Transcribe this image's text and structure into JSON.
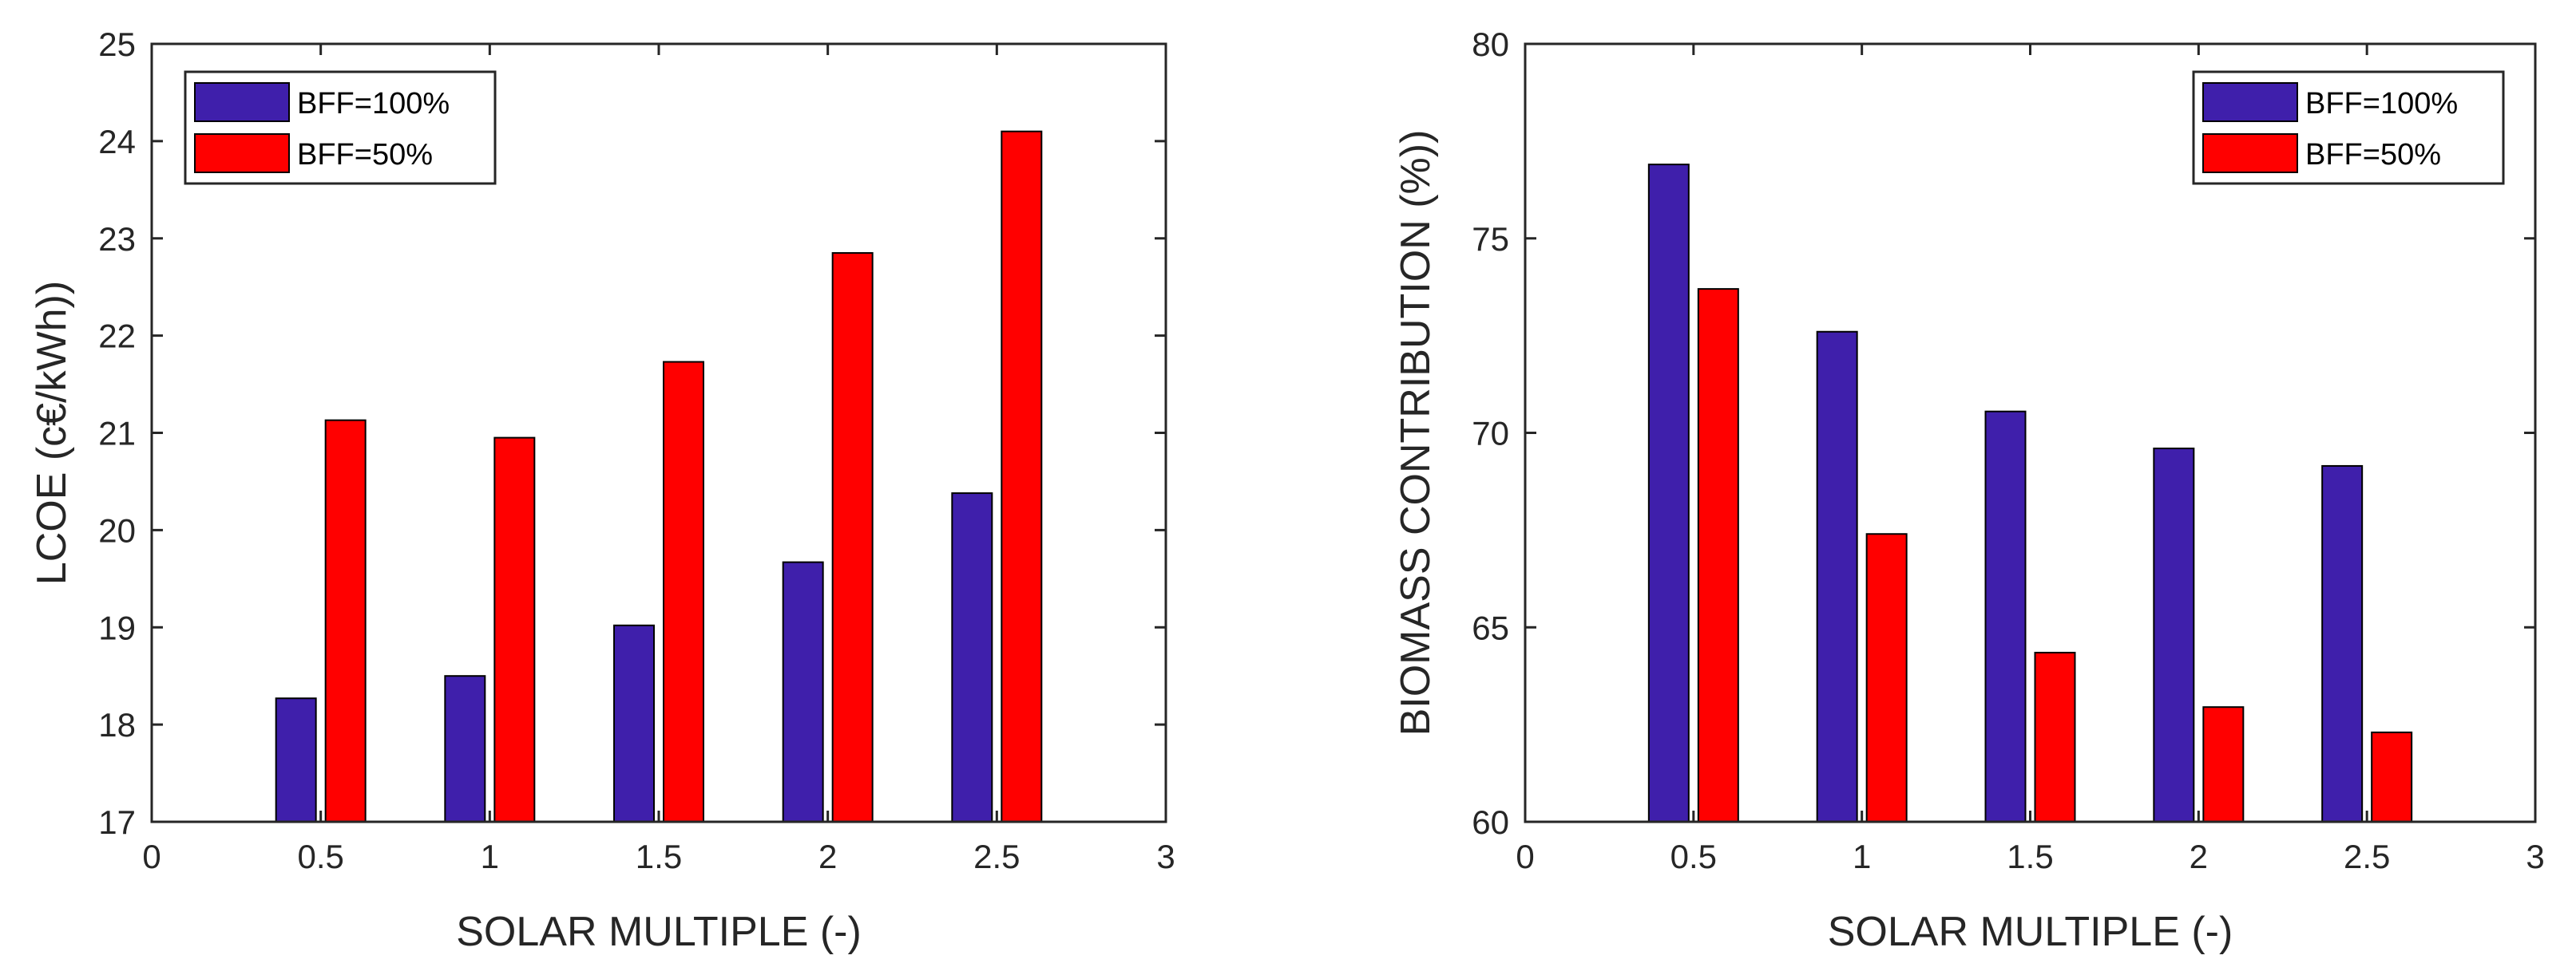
{
  "chart_data": [
    {
      "type": "bar",
      "title": "",
      "xlabel": "SOLAR MULTIPLE (-)",
      "ylabel": "LCOE (c€/kWh))",
      "x": [
        0.5,
        1,
        1.5,
        2,
        2.5
      ],
      "xlim": [
        0,
        3
      ],
      "ylim": [
        17,
        25
      ],
      "xticks": [
        "0",
        "0.5",
        "1",
        "1.5",
        "2",
        "2.5",
        "3"
      ],
      "yticks": [
        "17",
        "18",
        "19",
        "20",
        "21",
        "22",
        "23",
        "24",
        "25"
      ],
      "legend_position": "top-left",
      "series": [
        {
          "name": "BFF=100%",
          "color": "#3f1fab",
          "values": [
            18.27,
            18.5,
            19.02,
            19.67,
            20.38
          ]
        },
        {
          "name": "BFF=50%",
          "color": "#ff0000",
          "values": [
            21.13,
            20.95,
            21.73,
            22.85,
            24.1
          ]
        }
      ]
    },
    {
      "type": "bar",
      "title": "",
      "xlabel": "SOLAR MULTIPLE (-)",
      "ylabel": "BIOMASS CONTRIBUTION (%))",
      "x": [
        0.5,
        1,
        1.5,
        2,
        2.5
      ],
      "xlim": [
        0,
        3
      ],
      "ylim": [
        60,
        80
      ],
      "xticks": [
        "0",
        "0.5",
        "1",
        "1.5",
        "2",
        "2.5",
        "3"
      ],
      "yticks": [
        "60",
        "65",
        "70",
        "75",
        "80"
      ],
      "legend_position": "top-right",
      "series": [
        {
          "name": "BFF=100%",
          "color": "#3f1fab",
          "values": [
            76.9,
            72.6,
            70.55,
            69.6,
            69.15
          ]
        },
        {
          "name": "BFF=50%",
          "color": "#ff0000",
          "values": [
            73.7,
            67.4,
            64.35,
            62.95,
            62.3
          ]
        }
      ]
    }
  ]
}
